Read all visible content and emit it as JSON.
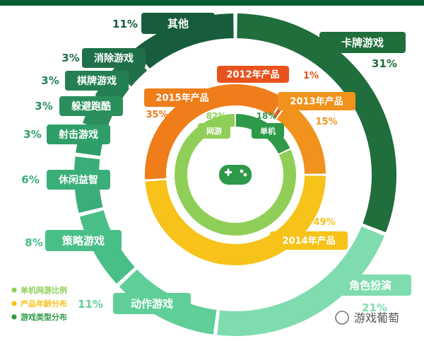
{
  "chart_data": [
    {
      "type": "pie",
      "ring": "outer",
      "legend_label": "游戏类型分布",
      "categories": [
        "卡牌游戏",
        "角色扮演",
        "动作游戏",
        "策略游戏",
        "休闲益智",
        "射击游戏",
        "躲避跑酷",
        "棋牌游戏",
        "消除游戏",
        "其他"
      ],
      "values": [
        31,
        21,
        11,
        8,
        6,
        3,
        3,
        3,
        3,
        11
      ],
      "labels": [
        "31%",
        "21%",
        "11%",
        "8%",
        "6%",
        "3%",
        "3%",
        "3%",
        "3%",
        "11%"
      ]
    },
    {
      "type": "pie",
      "ring": "middle",
      "legend_label": "产品年龄分布",
      "categories": [
        "2014年产品",
        "2015年产品",
        "2012年产品",
        "2013年产品"
      ],
      "values": [
        49,
        35,
        1,
        15
      ],
      "labels": [
        "49%",
        "35%",
        "1%",
        "15%"
      ]
    },
    {
      "type": "pie",
      "ring": "inner",
      "legend_label": "单机网游比例",
      "categories": [
        "单机",
        "网游"
      ],
      "values": [
        18,
        82
      ],
      "labels": [
        "18%",
        "82%"
      ]
    }
  ],
  "legend": [
    "单机网游比例",
    "产品年龄分布",
    "游戏类型分布"
  ],
  "watermark": "游戏葡萄",
  "colors": {
    "outer": [
      "#1f6e3b",
      "#7fdcae",
      "#5fcf97",
      "#48bf87",
      "#3aae78",
      "#2f9e68",
      "#2a8f5d",
      "#247f53",
      "#1f7049",
      "#175d3b"
    ],
    "middle": [
      "#f7c21a",
      "#ef7d1a",
      "#e8521c",
      "#f0921c"
    ],
    "inner": [
      "#2e9948",
      "#8fcf58"
    ],
    "legend_dots": [
      "#8fcf58",
      "#f7c21a",
      "#2e9948"
    ],
    "top_bar": "#0b5d33"
  }
}
